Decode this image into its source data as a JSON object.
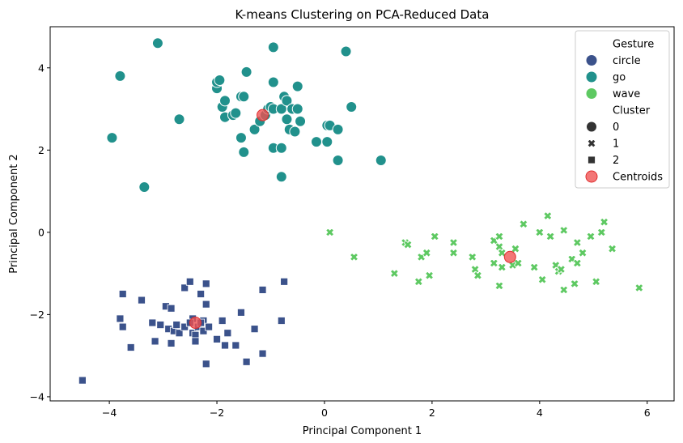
{
  "chart_data": {
    "type": "scatter",
    "title": "K-means Clustering on PCA-Reduced Data",
    "xlabel": "Principal Component 1",
    "ylabel": "Principal Component 2",
    "xlim": [
      -5.1,
      6.5
    ],
    "ylim": [
      -4.1,
      5.0
    ],
    "xticks": [
      -4,
      -2,
      0,
      2,
      4,
      6
    ],
    "yticks": [
      -4,
      -2,
      0,
      2,
      4
    ],
    "grid": false,
    "legend_position": "top-right",
    "legend": {
      "hue_title": "Gesture",
      "hue_entries": [
        {
          "label": "circle",
          "color": "#3b528b"
        },
        {
          "label": "go",
          "color": "#21918c"
        },
        {
          "label": "wave",
          "color": "#5ec962"
        }
      ],
      "style_title": "Cluster",
      "style_entries": [
        {
          "label": "0",
          "marker": "circle"
        },
        {
          "label": "1",
          "marker": "x"
        },
        {
          "label": "2",
          "marker": "square"
        }
      ],
      "centroid_label": "Centroids",
      "centroid_color": "#f05050"
    },
    "series": [
      {
        "name": "circle",
        "cluster": "2",
        "color": "#3b528b",
        "marker": "square",
        "points": [
          [
            -4.5,
            -3.6
          ],
          [
            -3.8,
            -2.1
          ],
          [
            -3.75,
            -2.3
          ],
          [
            -3.75,
            -1.5
          ],
          [
            -3.6,
            -2.8
          ],
          [
            -3.4,
            -1.65
          ],
          [
            -3.2,
            -2.2
          ],
          [
            -3.15,
            -2.65
          ],
          [
            -3.05,
            -2.25
          ],
          [
            -2.95,
            -1.8
          ],
          [
            -2.9,
            -2.35
          ],
          [
            -2.85,
            -2.7
          ],
          [
            -2.85,
            -1.85
          ],
          [
            -2.8,
            -2.4
          ],
          [
            -2.75,
            -2.25
          ],
          [
            -2.7,
            -2.45
          ],
          [
            -2.6,
            -1.35
          ],
          [
            -2.6,
            -2.3
          ],
          [
            -2.5,
            -1.2
          ],
          [
            -2.45,
            -2.1
          ],
          [
            -2.45,
            -2.45
          ],
          [
            -2.4,
            -2.5
          ],
          [
            -2.4,
            -2.65
          ],
          [
            -2.35,
            -2.3
          ],
          [
            -2.3,
            -1.5
          ],
          [
            -2.25,
            -2.15
          ],
          [
            -2.25,
            -2.4
          ],
          [
            -2.2,
            -1.75
          ],
          [
            -2.2,
            -1.25
          ],
          [
            -2.2,
            -3.2
          ],
          [
            -2.15,
            -2.3
          ],
          [
            -2.0,
            -2.6
          ],
          [
            -1.9,
            -2.15
          ],
          [
            -1.85,
            -2.75
          ],
          [
            -1.8,
            -2.45
          ],
          [
            -1.65,
            -2.75
          ],
          [
            -1.55,
            -1.95
          ],
          [
            -1.45,
            -3.15
          ],
          [
            -1.3,
            -2.35
          ],
          [
            -1.15,
            -1.4
          ],
          [
            -1.15,
            -2.95
          ],
          [
            -0.8,
            -2.15
          ],
          [
            -0.75,
            -1.2
          ],
          [
            -2.3,
            -2.2
          ],
          [
            -2.5,
            -2.2
          ]
        ]
      },
      {
        "name": "go",
        "cluster": "0",
        "color": "#21918c",
        "marker": "circle",
        "points": [
          [
            -3.95,
            2.3
          ],
          [
            -3.8,
            3.8
          ],
          [
            -3.35,
            1.1
          ],
          [
            -3.1,
            4.6
          ],
          [
            -2.7,
            2.75
          ],
          [
            -2.0,
            3.5
          ],
          [
            -2.0,
            3.65
          ],
          [
            -1.95,
            3.7
          ],
          [
            -1.9,
            3.05
          ],
          [
            -1.85,
            2.8
          ],
          [
            -1.85,
            3.2
          ],
          [
            -1.7,
            2.85
          ],
          [
            -1.65,
            2.9
          ],
          [
            -1.55,
            2.3
          ],
          [
            -1.55,
            3.3
          ],
          [
            -1.5,
            3.3
          ],
          [
            -1.5,
            1.95
          ],
          [
            -1.45,
            3.9
          ],
          [
            -1.3,
            2.5
          ],
          [
            -1.2,
            2.7
          ],
          [
            -1.1,
            2.85
          ],
          [
            -1.05,
            3.0
          ],
          [
            -1.0,
            3.05
          ],
          [
            -0.95,
            3.0
          ],
          [
            -0.95,
            3.65
          ],
          [
            -0.95,
            4.5
          ],
          [
            -0.95,
            2.05
          ],
          [
            -0.8,
            1.35
          ],
          [
            -0.8,
            2.05
          ],
          [
            -0.8,
            3.0
          ],
          [
            -0.75,
            3.3
          ],
          [
            -0.7,
            2.75
          ],
          [
            -0.7,
            3.2
          ],
          [
            -0.65,
            2.5
          ],
          [
            -0.6,
            3.0
          ],
          [
            -0.55,
            2.45
          ],
          [
            -0.5,
            3.0
          ],
          [
            -0.5,
            3.55
          ],
          [
            -0.45,
            2.7
          ],
          [
            -0.15,
            2.2
          ],
          [
            0.05,
            2.2
          ],
          [
            0.05,
            2.6
          ],
          [
            0.1,
            2.6
          ],
          [
            0.25,
            2.5
          ],
          [
            0.25,
            1.75
          ],
          [
            0.4,
            4.4
          ],
          [
            0.5,
            3.05
          ],
          [
            1.05,
            1.75
          ]
        ]
      },
      {
        "name": "wave",
        "cluster": "1",
        "color": "#5ec962",
        "marker": "x",
        "points": [
          [
            0.1,
            0.0
          ],
          [
            0.55,
            -0.6
          ],
          [
            1.3,
            -1.0
          ],
          [
            1.5,
            -0.25
          ],
          [
            1.55,
            -0.3
          ],
          [
            1.75,
            -1.2
          ],
          [
            1.8,
            -0.6
          ],
          [
            1.9,
            -0.5
          ],
          [
            1.95,
            -1.05
          ],
          [
            2.05,
            -0.1
          ],
          [
            2.4,
            -0.25
          ],
          [
            2.4,
            -0.5
          ],
          [
            2.75,
            -0.6
          ],
          [
            2.8,
            -0.9
          ],
          [
            2.85,
            -1.05
          ],
          [
            3.15,
            -0.2
          ],
          [
            3.15,
            -0.75
          ],
          [
            3.25,
            -0.1
          ],
          [
            3.25,
            -0.35
          ],
          [
            3.25,
            -1.3
          ],
          [
            3.3,
            -0.5
          ],
          [
            3.3,
            -0.85
          ],
          [
            3.5,
            -0.8
          ],
          [
            3.55,
            -0.4
          ],
          [
            3.6,
            -0.75
          ],
          [
            3.7,
            0.2
          ],
          [
            3.9,
            -0.85
          ],
          [
            4.0,
            0.0
          ],
          [
            4.05,
            -1.15
          ],
          [
            4.15,
            0.4
          ],
          [
            4.2,
            -0.1
          ],
          [
            4.3,
            -0.8
          ],
          [
            4.35,
            -0.95
          ],
          [
            4.4,
            -0.9
          ],
          [
            4.45,
            0.05
          ],
          [
            4.45,
            -1.4
          ],
          [
            4.6,
            -0.65
          ],
          [
            4.65,
            -1.25
          ],
          [
            4.7,
            -0.75
          ],
          [
            4.7,
            -0.25
          ],
          [
            4.8,
            -0.5
          ],
          [
            4.95,
            -0.1
          ],
          [
            5.05,
            -1.2
          ],
          [
            5.15,
            0.0
          ],
          [
            5.2,
            0.25
          ],
          [
            5.35,
            -0.4
          ],
          [
            5.85,
            -1.35
          ]
        ]
      }
    ],
    "centroids": [
      [
        -1.15,
        2.85
      ],
      [
        3.45,
        -0.6
      ],
      [
        -2.4,
        -2.2
      ]
    ]
  }
}
